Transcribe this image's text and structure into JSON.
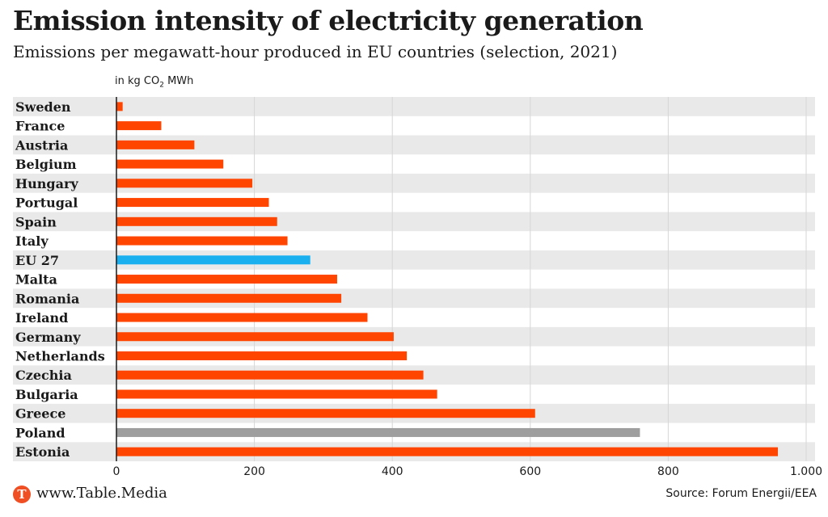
{
  "header": {
    "title": "Emission intensity of electricity generation",
    "subtitle": "Emissions per megawatt-hour produced in EU countries (selection, 2021)"
  },
  "unit_label": {
    "prefix": "in kg CO",
    "subscript": "2",
    "suffix": " MWh"
  },
  "footer": {
    "site": "www.Table.Media",
    "logo_letter": "T",
    "source": "Source: Forum Energii/EEA"
  },
  "colors": {
    "bar": "#ff4500",
    "eu_bar": "#1ab0f0",
    "poland_bar": "#9e9e9e",
    "stripe": "#e9e9e9",
    "logo": "#f04e23"
  },
  "chart_data": {
    "type": "bar",
    "orientation": "horizontal",
    "categories": [
      "Sweden",
      "France",
      "Austria",
      "Belgium",
      "Hungary",
      "Portugal",
      "Spain",
      "Italy",
      "EU 27",
      "Malta",
      "Romania",
      "Ireland",
      "Germany",
      "Netherlands",
      "Czechia",
      "Bulgaria",
      "Greece",
      "Poland",
      "Estonia"
    ],
    "values": [
      9,
      65,
      113,
      155,
      197,
      221,
      233,
      248,
      281,
      320,
      326,
      364,
      402,
      421,
      445,
      465,
      607,
      759,
      959
    ],
    "highlight": {
      "EU 27": "eu_bar",
      "Poland": "poland_bar"
    },
    "xticks": [
      0,
      200,
      400,
      600,
      800,
      1000
    ],
    "xtick_labels": [
      "0",
      "200",
      "400",
      "600",
      "800",
      "1.000"
    ],
    "xlim": [
      0,
      1000
    ],
    "grid": true
  }
}
